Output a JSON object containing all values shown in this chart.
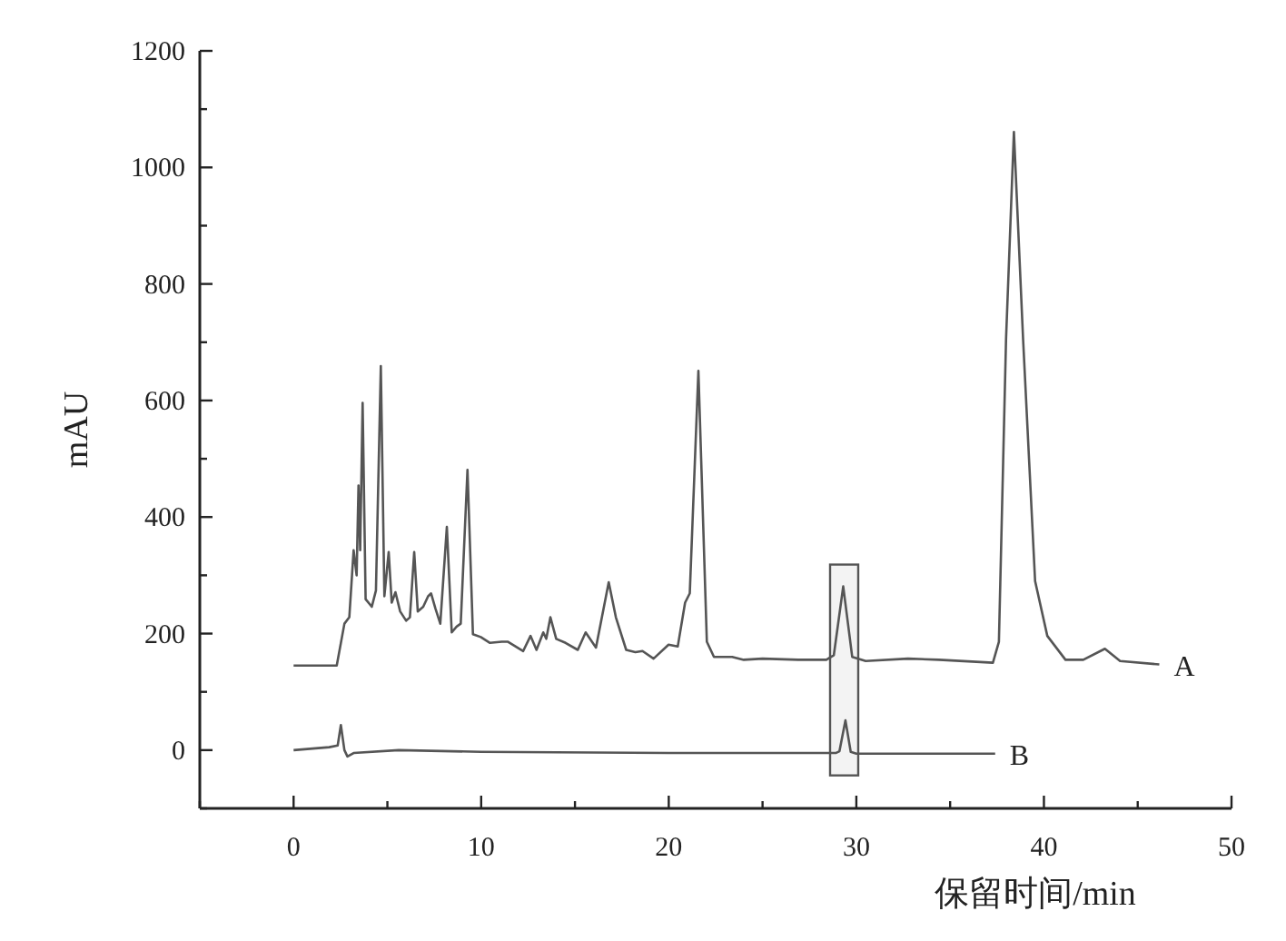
{
  "chart_data": {
    "type": "line",
    "xlabel": "保留时间/min",
    "ylabel": "mAU",
    "xlim": [
      -5,
      50
    ],
    "ylim": [
      -100,
      1200
    ],
    "xticks": [
      {
        "value": -5,
        "label": null
      },
      0,
      {
        "value": 5,
        "label": null
      },
      10,
      {
        "value": 15,
        "label": null
      },
      20,
      {
        "value": 25,
        "label": null
      },
      30,
      {
        "value": 35,
        "label": null
      },
      40,
      {
        "value": 45,
        "label": null
      },
      50
    ],
    "yticks": [
      {
        "value": -100,
        "label": null
      },
      0,
      {
        "value": 100,
        "label": null
      },
      200,
      {
        "value": 300,
        "label": null
      },
      400,
      {
        "value": 500,
        "label": null
      },
      600,
      {
        "value": 700,
        "label": null
      },
      800,
      {
        "value": 900,
        "label": null
      },
      1000,
      {
        "value": 1100,
        "label": null
      },
      1200
    ],
    "grid": false,
    "legend": false,
    "marker": "none",
    "line_style": "solid",
    "bands": [
      {
        "axis": "x",
        "from": 28.6,
        "to": 30.1,
        "color": "#555555"
      }
    ],
    "series": [
      {
        "name": "A",
        "color": "#555555",
        "x": [
          0,
          2.3,
          2.71,
          2.97,
          3.2,
          3.36,
          3.46,
          3.55,
          3.68,
          3.84,
          4.17,
          4.39,
          4.65,
          4.84,
          5.07,
          5.23,
          5.43,
          5.68,
          6.0,
          6.2,
          6.43,
          6.62,
          6.91,
          7.17,
          7.33,
          7.56,
          7.82,
          8.17,
          8.43,
          8.69,
          8.91,
          9.27,
          9.56,
          9.98,
          10.47,
          11.1,
          11.43,
          12.24,
          12.63,
          12.95,
          13.31,
          13.47,
          13.69,
          14.0,
          14.5,
          15.15,
          15.57,
          16.12,
          16.8,
          17.18,
          17.73,
          18.22,
          18.6,
          19.19,
          19.99,
          20.48,
          20.87,
          21.12,
          21.58,
          22.03,
          22.41,
          23.38,
          24.0,
          25.0,
          26.9,
          28.4,
          28.8,
          29.3,
          29.78,
          30.5,
          32.75,
          34.4,
          37.28,
          37.6,
          37.98,
          38.4,
          38.89,
          39.53,
          40.18,
          41.15,
          42.1,
          43.25,
          44.06,
          46.15
        ],
        "values": [
          145,
          145,
          217,
          228,
          343,
          300,
          454,
          343,
          596,
          259,
          246,
          274,
          659,
          264,
          340,
          253,
          271,
          238,
          222,
          228,
          340,
          238,
          246,
          264,
          269,
          243,
          217,
          383,
          202,
          212,
          217,
          481,
          199,
          194,
          184,
          186,
          186,
          170,
          196,
          172,
          202,
          191,
          228,
          191,
          184,
          172,
          202,
          176,
          288,
          228,
          172,
          168,
          170,
          157,
          181,
          178,
          253,
          269,
          651,
          186,
          160,
          160,
          155,
          157,
          155,
          155,
          163,
          281,
          160,
          153,
          157,
          155,
          150,
          186,
          705,
          1061,
          705,
          290,
          196,
          155,
          155,
          174,
          153,
          147
        ]
      },
      {
        "name": "B",
        "color": "#555555",
        "x": [
          0,
          1.9,
          2.35,
          2.52,
          2.71,
          2.87,
          3.2,
          5.6,
          10,
          20,
          28.9,
          29.1,
          29.42,
          29.7,
          30.0,
          37.4
        ],
        "values": [
          0,
          5,
          8,
          43,
          0,
          -11,
          -5,
          0,
          -3,
          -5,
          -5,
          -2,
          51,
          -3,
          -6,
          -6
        ]
      }
    ]
  }
}
